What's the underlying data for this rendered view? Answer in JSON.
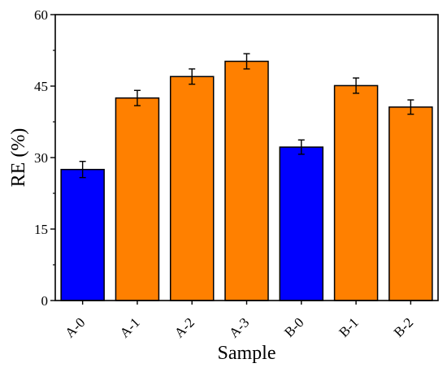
{
  "chart_data": {
    "type": "bar",
    "title": "",
    "xlabel": "Sample",
    "ylabel": "RE (%)",
    "ylim": [
      0,
      60
    ],
    "yticks": [
      0,
      15,
      30,
      45,
      60
    ],
    "grid": false,
    "legend": "none",
    "categories": [
      "A-0",
      "A-1",
      "A-2",
      "A-3",
      "B-0",
      "B-1",
      "B-2"
    ],
    "values": [
      27.5,
      42.5,
      47.0,
      50.2,
      32.2,
      45.1,
      40.6
    ],
    "errors": [
      1.7,
      1.6,
      1.6,
      1.6,
      1.5,
      1.6,
      1.5
    ],
    "bar_colors": [
      "#0000ff",
      "#ff8000",
      "#ff8000",
      "#ff8000",
      "#0000ff",
      "#ff8000",
      "#ff8000"
    ]
  }
}
